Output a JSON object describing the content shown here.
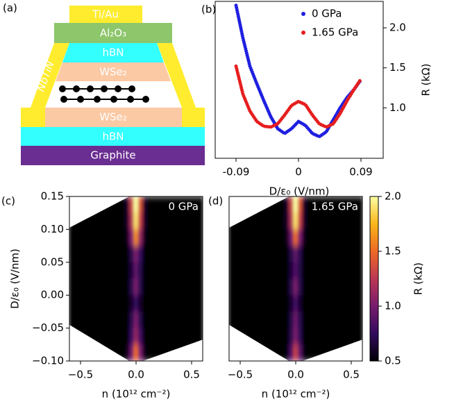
{
  "panel_a": {
    "label": "(a)",
    "layers": [
      "Ti/Au",
      "Al₂O₃",
      "hBN",
      "WSe₂",
      "WSe₂",
      "hBN",
      "Graphite"
    ],
    "contact": "NbTiN"
  },
  "chart_data": [
    {
      "type": "line",
      "panel_label": "(b)",
      "xlabel": "D/ε₀ (V/nm)",
      "ylabel": "R (kΩ)",
      "x": [
        -0.09,
        -0.08,
        -0.07,
        -0.06,
        -0.05,
        -0.04,
        -0.03,
        -0.02,
        -0.01,
        0,
        0.01,
        0.02,
        0.03,
        0.04,
        0.05,
        0.06,
        0.07,
        0.08,
        0.09
      ],
      "series": [
        {
          "name": "0 GPa",
          "color": "#1f1fe0",
          "values": [
            2.28,
            1.87,
            1.52,
            1.3,
            1.09,
            0.89,
            0.74,
            0.68,
            0.74,
            0.83,
            0.78,
            0.68,
            0.64,
            0.7,
            0.85,
            1.0,
            1.13,
            1.23,
            1.35
          ]
        },
        {
          "name": "1.65 GPa",
          "color": "#e61e1e",
          "values": [
            1.52,
            1.17,
            0.96,
            0.83,
            0.77,
            0.76,
            0.8,
            0.91,
            1.03,
            1.08,
            1.04,
            0.91,
            0.8,
            0.76,
            0.8,
            0.93,
            1.09,
            1.23,
            1.36
          ]
        }
      ],
      "xlim": [
        -0.12,
        0.122
      ],
      "ylim": [
        0.37,
        2.33
      ],
      "xticks": [
        -0.09,
        0,
        0.09
      ],
      "yticks": [
        {
          "value": 1,
          "label": "1.0"
        },
        1.5,
        {
          "value": 2,
          "label": "2.0"
        }
      ],
      "legend": "upper right"
    },
    {
      "type": "heatmap",
      "panel_label": "(c)",
      "annotation": "0 GPa",
      "xlabel": "n (10¹² cm⁻²)",
      "ylabel": "D/ε₀ (V/nm)",
      "x_edges": [
        -0.6,
        -0.1,
        -0.06,
        -0.02,
        0.02,
        0.06,
        0.1,
        0.6
      ],
      "y_edges": [
        0.15,
        0.125,
        0.1,
        0.075,
        0.05,
        0.025,
        0,
        -0.025,
        -0.05,
        -0.075,
        -0.1
      ],
      "z": [
        [
          0.5,
          0.6,
          1.3,
          2.0,
          1.4,
          0.6,
          0.5
        ],
        [
          0.5,
          0.6,
          1.2,
          1.9,
          1.3,
          0.6,
          0.5
        ],
        [
          0.5,
          0.55,
          1.0,
          1.6,
          1.1,
          0.55,
          0.5
        ],
        [
          0.5,
          0.5,
          0.7,
          1.0,
          0.75,
          0.5,
          0.5
        ],
        [
          0.5,
          0.5,
          0.65,
          0.9,
          0.7,
          0.5,
          0.5
        ],
        [
          0.5,
          0.5,
          0.7,
          1.0,
          0.7,
          0.5,
          0.5
        ],
        [
          0.5,
          0.5,
          0.6,
          0.75,
          0.6,
          0.5,
          0.5
        ],
        [
          0.5,
          0.5,
          0.7,
          1.0,
          0.7,
          0.5,
          0.5
        ],
        [
          0.5,
          0.5,
          0.75,
          1.1,
          0.8,
          0.5,
          0.5
        ],
        [
          0.5,
          0.55,
          0.95,
          1.5,
          1.0,
          0.55,
          0.5
        ]
      ],
      "xlim": [
        -0.6,
        0.6
      ],
      "ylim": [
        -0.1,
        0.15
      ],
      "xticks": [
        {
          "value": -0.5,
          "label": "−0.5"
        },
        {
          "value": 0,
          "label": "0.0"
        },
        0.5
      ],
      "yticks": [
        {
          "value": -0.1,
          "label": "−0.10"
        },
        {
          "value": -0.05,
          "label": "−0.05"
        },
        {
          "value": 0,
          "label": "0.00"
        },
        0.05,
        {
          "value": 0.1,
          "label": "0.10"
        },
        0.15
      ],
      "clim": [
        0.5,
        2.0
      ],
      "colormap": [
        "#000004",
        "#320a5e",
        "#781c6d",
        "#bc3754",
        "#ed6925",
        "#fbb61a",
        "#fcffa4"
      ]
    },
    {
      "type": "heatmap",
      "panel_label": "(d)",
      "annotation": "1.65 GPa",
      "xlabel": "n (10¹² cm⁻²)",
      "x_edges": [
        -0.6,
        -0.1,
        -0.06,
        -0.02,
        0.02,
        0.06,
        0.1,
        0.6
      ],
      "y_edges": [
        0.15,
        0.125,
        0.1,
        0.075,
        0.05,
        0.025,
        0,
        -0.025,
        -0.05,
        -0.075,
        -0.1
      ],
      "z": [
        [
          0.5,
          0.6,
          1.3,
          2.0,
          1.4,
          0.6,
          0.5
        ],
        [
          0.5,
          0.6,
          1.2,
          1.9,
          1.3,
          0.6,
          0.5
        ],
        [
          0.5,
          0.55,
          0.95,
          1.5,
          1.0,
          0.55,
          0.5
        ],
        [
          0.5,
          0.5,
          0.68,
          0.9,
          0.7,
          0.5,
          0.5
        ],
        [
          0.5,
          0.5,
          0.65,
          0.85,
          0.68,
          0.5,
          0.5
        ],
        [
          0.5,
          0.5,
          0.7,
          1.0,
          0.7,
          0.5,
          0.5
        ],
        [
          0.5,
          0.5,
          0.62,
          0.8,
          0.62,
          0.5,
          0.5
        ],
        [
          0.5,
          0.5,
          0.68,
          0.95,
          0.7,
          0.5,
          0.5
        ],
        [
          0.5,
          0.5,
          0.7,
          1.0,
          0.72,
          0.5,
          0.5
        ],
        [
          0.5,
          0.52,
          0.85,
          1.3,
          0.9,
          0.52,
          0.5
        ]
      ],
      "xlim": [
        -0.6,
        0.6
      ],
      "ylim": [
        -0.1,
        0.15
      ],
      "xticks": [
        {
          "value": -0.5,
          "label": "−0.5"
        },
        {
          "value": 0,
          "label": "0.0"
        },
        0.5
      ],
      "clim": [
        0.5,
        2.0
      ],
      "colormap": [
        "#000004",
        "#320a5e",
        "#781c6d",
        "#bc3754",
        "#ed6925",
        "#fbb61a",
        "#fcffa4"
      ],
      "colorbar": {
        "label": "R (kΩ)",
        "ticks": [
          0.5,
          {
            "value": 1,
            "label": "1.0"
          },
          1.5,
          {
            "value": 2,
            "label": "2.0"
          }
        ]
      }
    }
  ]
}
